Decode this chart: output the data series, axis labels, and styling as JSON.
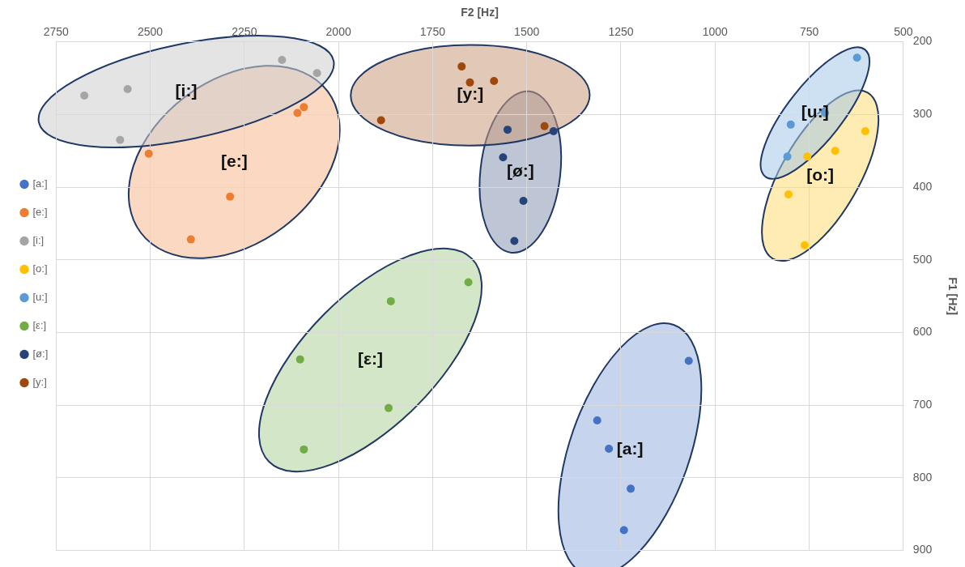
{
  "chart_data": {
    "type": "scatter",
    "xlabel": "F2 [Hz]",
    "ylabel": "F1 [Hz]",
    "xlim": [
      2750,
      500
    ],
    "xticks": [
      2750,
      2500,
      2250,
      2000,
      1750,
      1500,
      1250,
      1000,
      750,
      500
    ],
    "ylim": [
      900,
      200
    ],
    "yticks": [
      200,
      300,
      400,
      500,
      600,
      700,
      800,
      900
    ],
    "grid": true,
    "legend": "left",
    "marker": "circle",
    "series": [
      {
        "name": "[a:]",
        "color": "#4472c4",
        "x": [
          1070,
          1313,
          1282,
          1224,
          1242
        ],
        "values": [
          639,
          721,
          760,
          815,
          872
        ]
      },
      {
        "name": "[e:]",
        "color": "#ed7d31",
        "x": [
          2504,
          2109,
          2092,
          2288,
          2392
        ],
        "values": [
          354,
          298,
          290,
          413,
          472
        ]
      },
      {
        "name": "[i:]",
        "color": "#a5a5a5",
        "x": [
          2675,
          2560,
          2580,
          2150,
          2057
        ],
        "values": [
          274,
          265,
          335,
          225,
          243
        ]
      },
      {
        "name": "[o:]",
        "color": "#ffc000",
        "x": [
          601,
          681,
          755,
          805,
          762
        ],
        "values": [
          323,
          350,
          358,
          410,
          480
        ]
      },
      {
        "name": "[u:]",
        "color": "#5b9bd5",
        "x": [
          623,
          708,
          799,
          808
        ],
        "values": [
          222,
          298,
          314,
          358
        ]
      },
      {
        "name": "[ε:]",
        "color": "#70ad47",
        "x": [
          1655,
          1861,
          2102,
          1867,
          2092
        ],
        "values": [
          531,
          557,
          637,
          704,
          761
        ]
      },
      {
        "name": "[ø:]",
        "color": "#264478",
        "x": [
          1551,
          1429,
          1563,
          1509,
          1533
        ],
        "values": [
          321,
          323,
          359,
          419,
          474
        ]
      },
      {
        "name": "[y:]",
        "color": "#9e480e",
        "x": [
          1887,
          1673,
          1651,
          1587,
          1453
        ],
        "values": [
          308,
          234,
          256,
          254,
          316
        ]
      }
    ],
    "annotations": [
      "[a:]",
      "[e:]",
      "[i:]",
      "[o:]",
      "[u:]",
      "[ε:]",
      "[ø:]",
      "[y:]"
    ]
  }
}
